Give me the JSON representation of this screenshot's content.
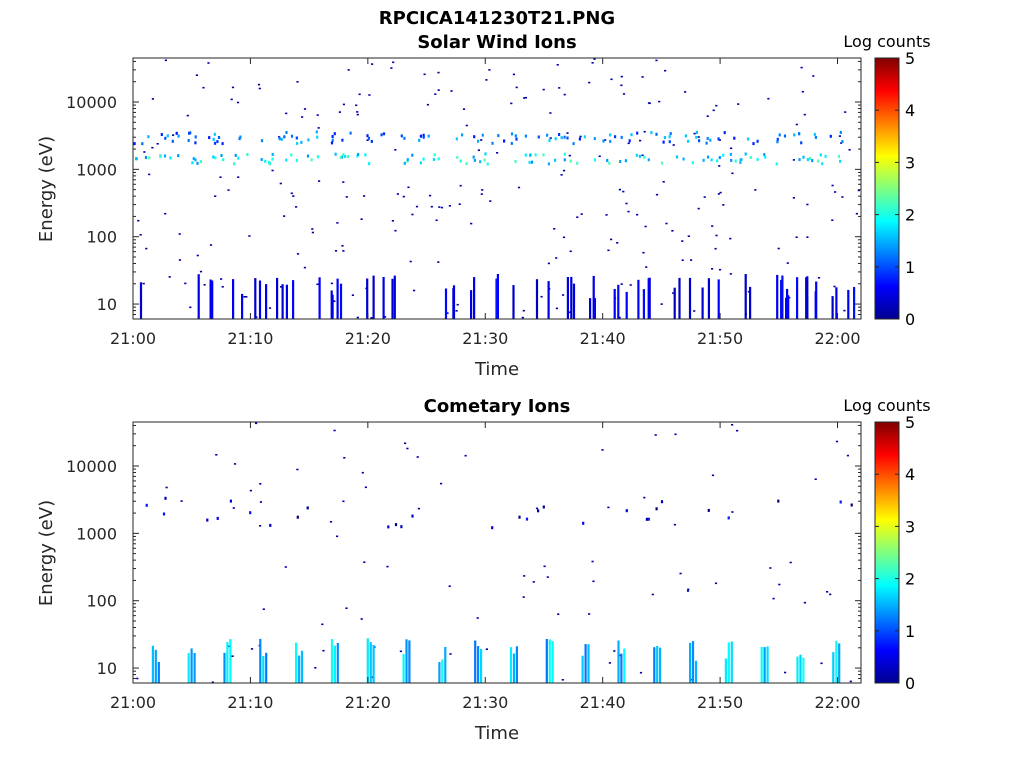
{
  "figure_title": "RPCICA141230T21.PNG",
  "chart_data": [
    {
      "type": "heatmap",
      "title": "Solar Wind Ions",
      "xlabel": "Time",
      "ylabel": "Energy (eV)",
      "x_ticks": [
        "21:00",
        "21:10",
        "21:20",
        "21:30",
        "21:40",
        "21:50",
        "22:00"
      ],
      "x_range_minutes": [
        0,
        62
      ],
      "y_scale": "log",
      "y_range": [
        6,
        45000
      ],
      "y_ticks": [
        10,
        100,
        1000,
        10000
      ],
      "colorbar": {
        "label": "Log counts",
        "min": 0,
        "max": 5,
        "ticks": [
          0,
          1,
          2,
          3,
          4,
          5
        ],
        "colormap": "jet"
      },
      "bands": [
        {
          "energy_range": [
            5.5,
            28
          ],
          "typical_log_counts": 0.3,
          "description": "low-energy intermittent"
        },
        {
          "energy_range": [
            2400,
            3600
          ],
          "typical_log_counts": 1.2
        },
        {
          "energy_range": [
            1200,
            1700
          ],
          "typical_log_counts": 1.8
        }
      ]
    },
    {
      "type": "heatmap",
      "title": "Cometary Ions",
      "xlabel": "Time",
      "ylabel": "Energy (eV)",
      "x_ticks": [
        "21:00",
        "21:10",
        "21:20",
        "21:30",
        "21:40",
        "21:50",
        "22:00"
      ],
      "x_range_minutes": [
        0,
        62
      ],
      "y_scale": "log",
      "y_range": [
        6,
        45000
      ],
      "y_ticks": [
        10,
        100,
        1000,
        10000
      ],
      "colorbar": {
        "label": "Log counts",
        "min": 0,
        "max": 5,
        "ticks": [
          0,
          1,
          2,
          3,
          4,
          5
        ],
        "colormap": "jet"
      },
      "bands": [
        {
          "energy_range": [
            5.5,
            28
          ],
          "typical_log_counts": 1.6,
          "description": "periodic bursts ~every 3 min"
        },
        {
          "energy_range": [
            1200,
            3500
          ],
          "typical_log_counts": 0.3
        }
      ]
    }
  ]
}
